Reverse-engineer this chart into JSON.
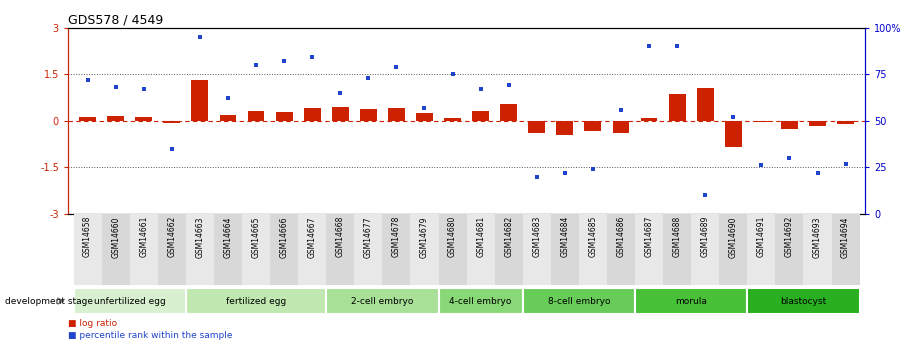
{
  "title": "GDS578 / 4549",
  "samples": [
    "GSM14658",
    "GSM14660",
    "GSM14661",
    "GSM14662",
    "GSM14663",
    "GSM14664",
    "GSM14665",
    "GSM14666",
    "GSM14667",
    "GSM14668",
    "GSM14677",
    "GSM14678",
    "GSM14679",
    "GSM14680",
    "GSM14681",
    "GSM14682",
    "GSM14683",
    "GSM14684",
    "GSM14685",
    "GSM14686",
    "GSM14687",
    "GSM14688",
    "GSM14689",
    "GSM14690",
    "GSM14691",
    "GSM14692",
    "GSM14693",
    "GSM14694"
  ],
  "log_ratio": [
    0.12,
    0.15,
    0.12,
    -0.08,
    1.3,
    0.18,
    0.3,
    0.28,
    0.4,
    0.45,
    0.38,
    0.42,
    0.25,
    0.08,
    0.3,
    0.55,
    -0.38,
    -0.45,
    -0.32,
    -0.38,
    0.08,
    0.85,
    1.05,
    -0.85,
    -0.05,
    -0.28,
    -0.18,
    -0.12
  ],
  "percentile_rank": [
    72,
    68,
    67,
    35,
    95,
    62,
    80,
    82,
    84,
    65,
    73,
    79,
    57,
    75,
    67,
    69,
    20,
    22,
    24,
    56,
    90,
    90,
    10,
    52,
    26,
    30,
    22,
    27
  ],
  "stage_groups": [
    {
      "label": "unfertilized egg",
      "start": 0,
      "end": 4,
      "color": "#d8f0d0"
    },
    {
      "label": "fertilized egg",
      "start": 4,
      "end": 9,
      "color": "#c0e8b0"
    },
    {
      "label": "2-cell embryo",
      "start": 9,
      "end": 13,
      "color": "#a8e098"
    },
    {
      "label": "4-cell embryo",
      "start": 13,
      "end": 16,
      "color": "#88d878"
    },
    {
      "label": "8-cell embryo",
      "start": 16,
      "end": 20,
      "color": "#68cc58"
    },
    {
      "label": "morula",
      "start": 20,
      "end": 24,
      "color": "#48c038"
    },
    {
      "label": "blastocyst",
      "start": 24,
      "end": 28,
      "color": "#28b020"
    }
  ],
  "ylim": [
    -3,
    3
  ],
  "bar_color": "#cc2200",
  "dot_color": "#2244cc",
  "hline_color": "#cc2200",
  "dotted_line_color": "#555555",
  "background_color": "#ffffff"
}
